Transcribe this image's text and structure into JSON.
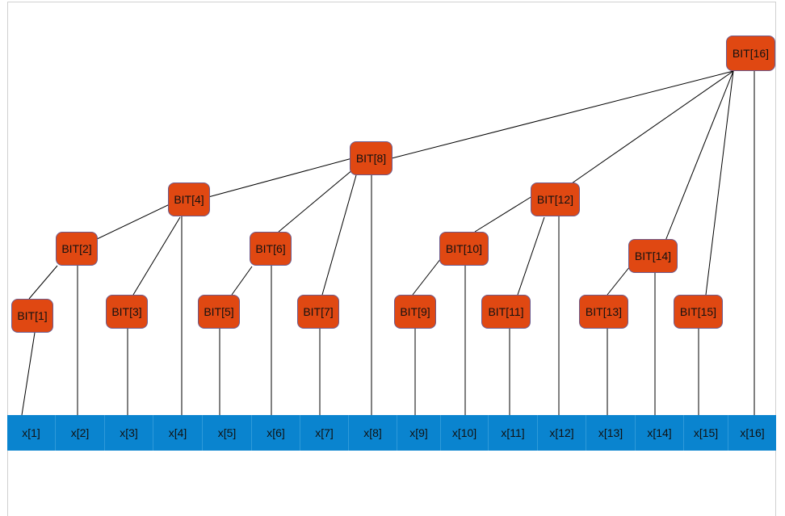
{
  "diagram": {
    "colors": {
      "node_fill": "#e04812",
      "node_border": "#6e5a8c",
      "array_fill": "#0a84cf",
      "edge": "#000000"
    },
    "nodes": [
      {
        "id": 1,
        "label": "BIT[1]"
      },
      {
        "id": 2,
        "label": "BIT[2]"
      },
      {
        "id": 3,
        "label": "BIT[3]"
      },
      {
        "id": 4,
        "label": "BIT[4]"
      },
      {
        "id": 5,
        "label": "BIT[5]"
      },
      {
        "id": 6,
        "label": "BIT[6]"
      },
      {
        "id": 7,
        "label": "BIT[7]"
      },
      {
        "id": 8,
        "label": "BIT[8]"
      },
      {
        "id": 9,
        "label": "BIT[9]"
      },
      {
        "id": 10,
        "label": "BIT[10]"
      },
      {
        "id": 11,
        "label": "BIT[11]"
      },
      {
        "id": 12,
        "label": "BIT[12]"
      },
      {
        "id": 13,
        "label": "BIT[13]"
      },
      {
        "id": 14,
        "label": "BIT[14]"
      },
      {
        "id": 15,
        "label": "BIT[15]"
      },
      {
        "id": 16,
        "label": "BIT[16]"
      }
    ],
    "array": [
      "x[1]",
      "x[2]",
      "x[3]",
      "x[4]",
      "x[5]",
      "x[6]",
      "x[7]",
      "x[8]",
      "x[9]",
      "x[10]",
      "x[11]",
      "x[12]",
      "x[13]",
      "x[14]",
      "x[15]",
      "x[16]"
    ],
    "tree_edges": [
      [
        2,
        1
      ],
      [
        4,
        2
      ],
      [
        4,
        3
      ],
      [
        8,
        4
      ],
      [
        6,
        5
      ],
      [
        8,
        6
      ],
      [
        8,
        7
      ],
      [
        10,
        9
      ],
      [
        12,
        10
      ],
      [
        12,
        11
      ],
      [
        16,
        8
      ],
      [
        16,
        12
      ],
      [
        14,
        13
      ],
      [
        16,
        14
      ],
      [
        16,
        15
      ]
    ]
  }
}
